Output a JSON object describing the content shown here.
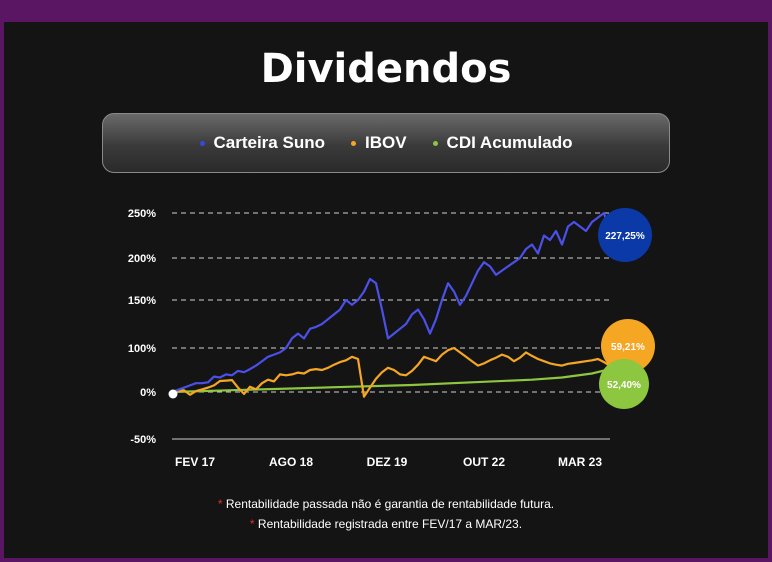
{
  "title": "Dividendos",
  "legend": [
    {
      "name": "Carteira Suno",
      "color": "#3548e0"
    },
    {
      "name": "IBOV",
      "color": "#f5a623"
    },
    {
      "name": "CDI Acumulado",
      "color": "#8dc63f"
    }
  ],
  "footnotes": [
    "Rentabilidade passada não é garantia de rentabilidade futura.",
    "Rentabilidade registrada entre FEV/17 a MAR/23."
  ],
  "chart_data": {
    "type": "line",
    "x_tick_labels": [
      "FEV 17",
      "AGO 18",
      "DEZ 19",
      "OUT 22",
      "MAR 23"
    ],
    "y_tick_labels": [
      "250%",
      "200%",
      "150%",
      "100%",
      "0%",
      "-50%"
    ],
    "grid": "dashed horizontal",
    "series": [
      {
        "name": "Carteira Suno",
        "color": "#4a50e8",
        "end_label": "227,25%",
        "badge_color": "#0b3aa8",
        "x": [
          0,
          1,
          2,
          3,
          4,
          5,
          6,
          7,
          8,
          9,
          10,
          11,
          12,
          13,
          14,
          15,
          16,
          17,
          18,
          19,
          20,
          21,
          22,
          23,
          24,
          25,
          26,
          27,
          28,
          29,
          30,
          31,
          32,
          33,
          34,
          35,
          36,
          37,
          38,
          39,
          40,
          41,
          42,
          43,
          44,
          45,
          46,
          47,
          48,
          49,
          50,
          51,
          52,
          53,
          54,
          55,
          56,
          57,
          58,
          59,
          60,
          61,
          62,
          63,
          64,
          65,
          66,
          67,
          68,
          69,
          70,
          71,
          72,
          73
        ],
        "values": [
          0,
          5,
          10,
          15,
          20,
          20,
          22,
          35,
          33,
          40,
          38,
          48,
          45,
          52,
          60,
          70,
          80,
          85,
          90,
          100,
          110,
          115,
          110,
          120,
          122,
          125,
          130,
          135,
          140,
          150,
          145,
          150,
          160,
          175,
          170,
          140,
          110,
          115,
          120,
          125,
          135,
          140,
          130,
          115,
          130,
          150,
          170,
          160,
          145,
          155,
          170,
          185,
          195,
          190,
          180,
          185,
          190,
          195,
          200,
          210,
          215,
          205,
          225,
          220,
          230,
          215,
          235,
          240,
          235,
          230,
          240,
          245,
          250,
          227
        ]
      },
      {
        "name": "IBOV",
        "color": "#f5a623",
        "end_label": "59,21%",
        "badge_color": "#f5a623",
        "x": [
          0,
          1,
          2,
          3,
          4,
          5,
          6,
          7,
          8,
          9,
          10,
          11,
          12,
          13,
          14,
          15,
          16,
          17,
          18,
          19,
          20,
          21,
          22,
          23,
          24,
          25,
          26,
          27,
          28,
          29,
          30,
          31,
          32,
          33,
          34,
          35,
          36,
          37,
          38,
          39,
          40,
          41,
          42,
          43,
          44,
          45,
          46,
          47,
          48,
          49,
          50,
          51,
          52,
          53,
          54,
          55,
          56,
          57,
          58,
          59,
          60,
          61,
          62,
          63,
          64,
          65,
          66,
          67,
          68,
          69,
          70,
          71,
          72,
          73
        ],
        "values": [
          0,
          2,
          4,
          -3,
          2,
          6,
          10,
          15,
          25,
          26,
          27,
          10,
          -2,
          12,
          6,
          20,
          28,
          24,
          40,
          38,
          40,
          44,
          42,
          50,
          52,
          50,
          55,
          62,
          68,
          72,
          80,
          75,
          -5,
          10,
          30,
          45,
          55,
          50,
          40,
          38,
          48,
          62,
          80,
          75,
          70,
          85,
          95,
          100,
          90,
          80,
          70,
          60,
          65,
          72,
          78,
          85,
          80,
          70,
          78,
          90,
          82,
          75,
          70,
          65,
          62,
          60,
          64,
          66,
          68,
          70,
          72,
          75,
          68,
          59
        ]
      },
      {
        "name": "CDI Acumulado",
        "color": "#8dc63f",
        "end_label": "52,40%",
        "badge_color": "#8dc63f",
        "x": [
          0,
          10,
          20,
          30,
          40,
          50,
          60,
          65,
          70,
          73
        ],
        "values": [
          0,
          4,
          8,
          12,
          16,
          22,
          28,
          33,
          42,
          52
        ]
      }
    ]
  }
}
